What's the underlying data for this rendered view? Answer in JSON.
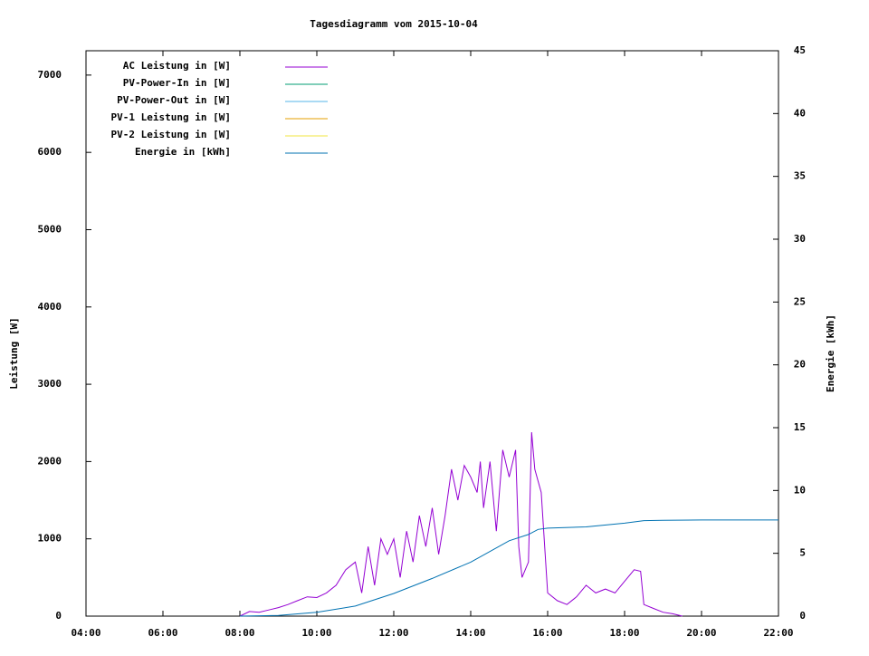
{
  "chart_data": {
    "type": "line",
    "title": "Tagesdiagramm vom 2015-10-04",
    "ylabel": "Leistung [W]",
    "y2label": "Energie [kWh]",
    "xlim": [
      "04:00",
      "22:00"
    ],
    "xticks": [
      "04:00",
      "06:00",
      "08:00",
      "10:00",
      "12:00",
      "14:00",
      "16:00",
      "18:00",
      "20:00",
      "22:00"
    ],
    "ylim": [
      0,
      7315
    ],
    "yticks": [
      0,
      1000,
      2000,
      3000,
      4000,
      5000,
      6000,
      7000
    ],
    "y2lim": [
      0,
      45
    ],
    "y2ticks": [
      0,
      5,
      10,
      15,
      20,
      25,
      30,
      35,
      40,
      45
    ],
    "legend": "top-left",
    "series": [
      {
        "name": "AC Leistung in [W]",
        "color": "#9400d3",
        "x": [
          "08:00",
          "08:15",
          "08:30",
          "08:45",
          "09:00",
          "09:15",
          "09:30",
          "09:45",
          "10:00",
          "10:15",
          "10:30",
          "10:45",
          "11:00",
          "11:10",
          "11:20",
          "11:30",
          "11:40",
          "11:50",
          "12:00",
          "12:10",
          "12:20",
          "12:30",
          "12:40",
          "12:50",
          "13:00",
          "13:10",
          "13:20",
          "13:30",
          "13:40",
          "13:50",
          "14:00",
          "14:10",
          "14:15",
          "14:20",
          "14:30",
          "14:40",
          "14:50",
          "15:00",
          "15:10",
          "15:15",
          "15:20",
          "15:30",
          "15:35",
          "15:40",
          "15:50",
          "16:00",
          "16:15",
          "16:30",
          "16:45",
          "17:00",
          "17:15",
          "17:30",
          "17:45",
          "18:00",
          "18:15",
          "18:25",
          "18:30",
          "18:45",
          "19:00",
          "19:15",
          "19:30"
        ],
        "values": [
          0,
          60,
          50,
          80,
          110,
          150,
          200,
          250,
          240,
          300,
          400,
          600,
          700,
          300,
          900,
          400,
          1000,
          800,
          1000,
          500,
          1100,
          700,
          1300,
          900,
          1400,
          800,
          1300,
          1900,
          1500,
          1950,
          1800,
          1600,
          2000,
          1400,
          2000,
          1100,
          2150,
          1800,
          2150,
          900,
          500,
          700,
          2380,
          1900,
          1600,
          300,
          200,
          150,
          250,
          400,
          300,
          350,
          300,
          450,
          600,
          580,
          150,
          100,
          50,
          30,
          0
        ]
      },
      {
        "name": "PV-Power-In in [W]",
        "color": "#009e73",
        "x": [],
        "values": []
      },
      {
        "name": "PV-Power-Out in [W]",
        "color": "#56b4e9",
        "x": [],
        "values": []
      },
      {
        "name": "PV-1 Leistung in [W]",
        "color": "#e69f00",
        "x": [],
        "values": []
      },
      {
        "name": "PV-2 Leistung in [W]",
        "color": "#f0e442",
        "x": [],
        "values": []
      },
      {
        "name": "Energie in [kWh]",
        "color": "#0072b2",
        "axis": "y2",
        "x": [
          "08:00",
          "09:00",
          "10:00",
          "11:00",
          "12:00",
          "13:00",
          "14:00",
          "15:00",
          "15:30",
          "15:45",
          "16:00",
          "17:00",
          "18:00",
          "18:30",
          "19:00",
          "20:00",
          "22:00"
        ],
        "values": [
          0,
          0.05,
          0.3,
          0.8,
          1.8,
          3.0,
          4.3,
          6.0,
          6.5,
          6.9,
          7.0,
          7.1,
          7.4,
          7.6,
          7.62,
          7.65,
          7.65
        ]
      }
    ]
  }
}
